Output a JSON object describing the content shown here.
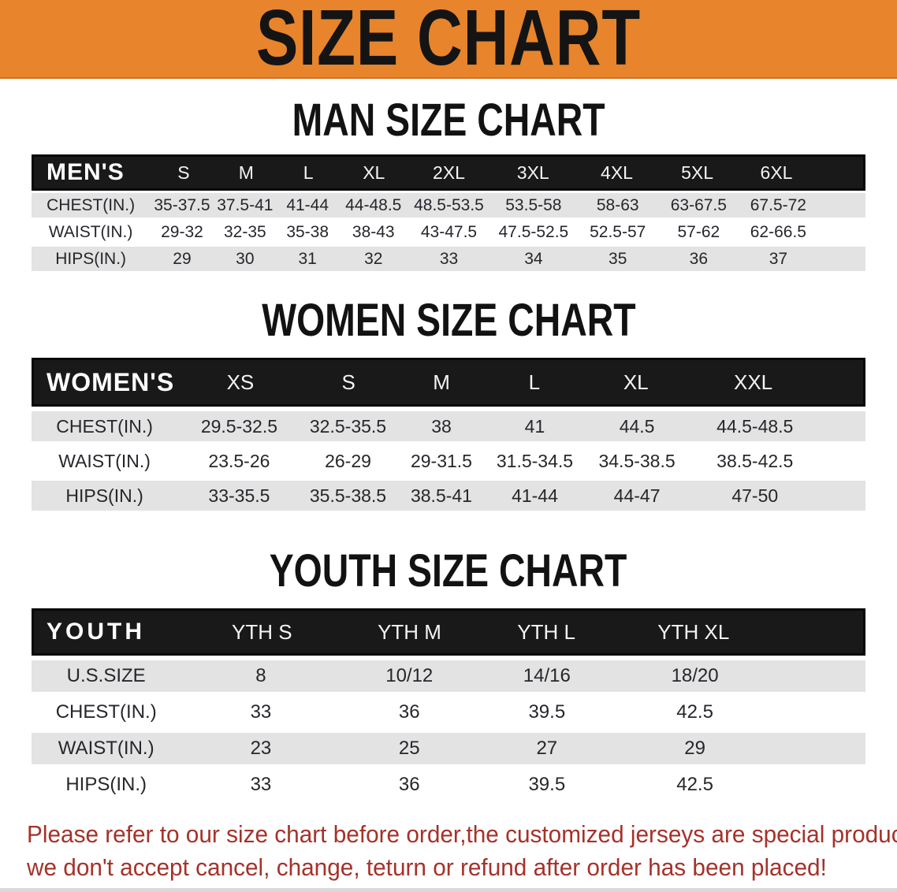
{
  "banner": {
    "title": "SIZE CHART",
    "bg_color": "#E8842B",
    "text_color": "#141414"
  },
  "colors": {
    "header_bar": "#191919",
    "shaded_row": "#e3e3e3",
    "footer_text": "#A5322A"
  },
  "sections": [
    {
      "title": "MAN SIZE CHART",
      "header_label": "MEN'S",
      "columns": [
        "S",
        "M",
        "L",
        "XL",
        "2XL",
        "3XL",
        "4XL",
        "5XL",
        "6XL"
      ],
      "rows": [
        {
          "label": "CHEST(IN.)",
          "values": [
            "35-37.5",
            "37.5-41",
            "41-44",
            "44-48.5",
            "48.5-53.5",
            "53.5-58",
            "58-63",
            "63-67.5",
            "67.5-72"
          ]
        },
        {
          "label": "WAIST(IN.)",
          "values": [
            "29-32",
            "32-35",
            "35-38",
            "38-43",
            "43-47.5",
            "47.5-52.5",
            "52.5-57",
            "57-62",
            "62-66.5"
          ]
        },
        {
          "label": "HIPS(IN.)",
          "values": [
            "29",
            "30",
            "31",
            "32",
            "33",
            "34",
            "35",
            "36",
            "37"
          ]
        }
      ]
    },
    {
      "title": "WOMEN SIZE CHART",
      "header_label": "WOMEN'S",
      "columns": [
        "XS",
        "S",
        "M",
        "L",
        "XL",
        "XXL"
      ],
      "rows": [
        {
          "label": "CHEST(IN.)",
          "values": [
            "29.5-32.5",
            "32.5-35.5",
            "38",
            "41",
            "44.5",
            "44.5-48.5"
          ]
        },
        {
          "label": "WAIST(IN.)",
          "values": [
            "23.5-26",
            "26-29",
            "29-31.5",
            "31.5-34.5",
            "34.5-38.5",
            "38.5-42.5"
          ]
        },
        {
          "label": "HIPS(IN.)",
          "values": [
            "33-35.5",
            "35.5-38.5",
            "38.5-41",
            "41-44",
            "44-47",
            "47-50"
          ]
        }
      ]
    },
    {
      "title": "YOUTH SIZE CHART",
      "header_label": "YOUTH",
      "columns": [
        "YTH S",
        "YTH M",
        "YTH L",
        "YTH XL"
      ],
      "rows": [
        {
          "label": "U.S.SIZE",
          "values": [
            "8",
            "10/12",
            "14/16",
            "18/20"
          ]
        },
        {
          "label": "CHEST(IN.)",
          "values": [
            "33",
            "36",
            "39.5",
            "42.5"
          ]
        },
        {
          "label": "WAIST(IN.)",
          "values": [
            "23",
            "25",
            "27",
            "29"
          ]
        },
        {
          "label": "HIPS(IN.)",
          "values": [
            "33",
            "36",
            "39.5",
            "42.5"
          ]
        }
      ]
    }
  ],
  "footer": {
    "line1": "Please refer to our size chart before order,the customized jerseys are special products,",
    "line2": "we don't accept cancel, change, teturn or refund after order has been placed!"
  }
}
